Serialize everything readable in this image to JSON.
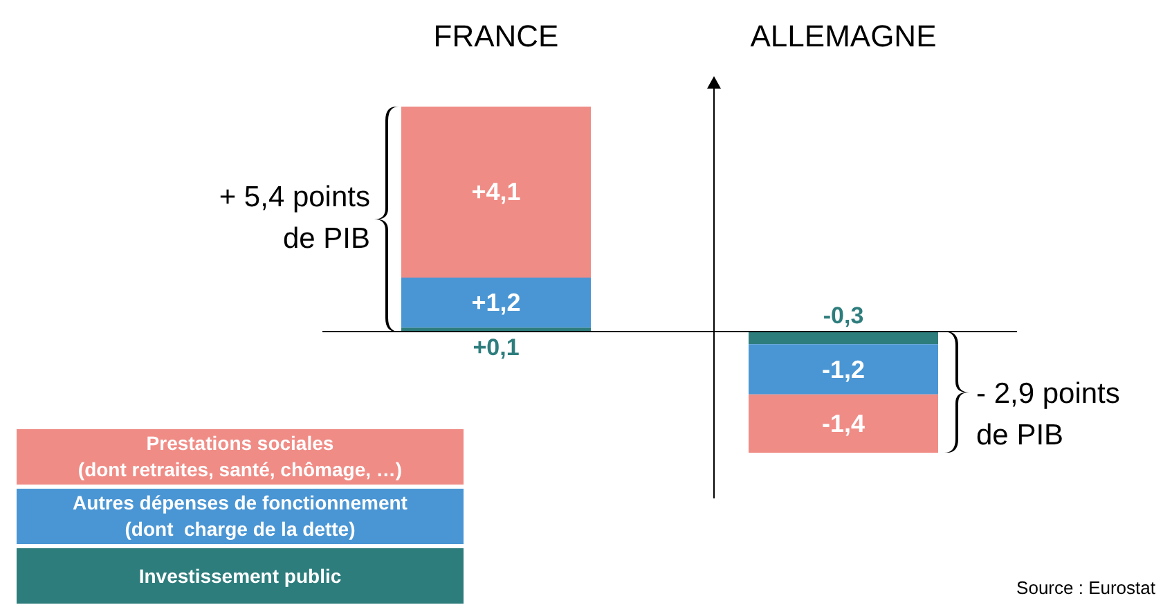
{
  "chart_data": {
    "type": "bar",
    "categories": [
      "FRANCE",
      "ALLEMAGNE"
    ],
    "stacked": true,
    "series": [
      {
        "name": "Investissement public",
        "color": "#2e7d7d",
        "values": [
          0.1,
          -0.3
        ],
        "value_labels": [
          "+0,1",
          "-0,3"
        ]
      },
      {
        "name": "Autres dépenses de fonctionnement\n(dont  charge de la dette)",
        "color": "#4a96d4",
        "values": [
          1.2,
          -1.2
        ],
        "value_labels": [
          "+1,2",
          "-1,2"
        ]
      },
      {
        "name": "Prestations sociales\n(dont retraites, santé, chômage, …)",
        "color": "#f08c86",
        "values": [
          4.1,
          -1.4
        ],
        "value_labels": [
          "+4,1",
          "-1,4"
        ]
      }
    ],
    "annotations": [
      "+ 5,4 points\nde PIB",
      "- 2,9 points\nde PIB",
      "Source : Eurostat"
    ],
    "ref_lines": [
      {
        "axis": "y",
        "value": 0,
        "color": "#000000"
      }
    ],
    "legend": "bottom left"
  }
}
